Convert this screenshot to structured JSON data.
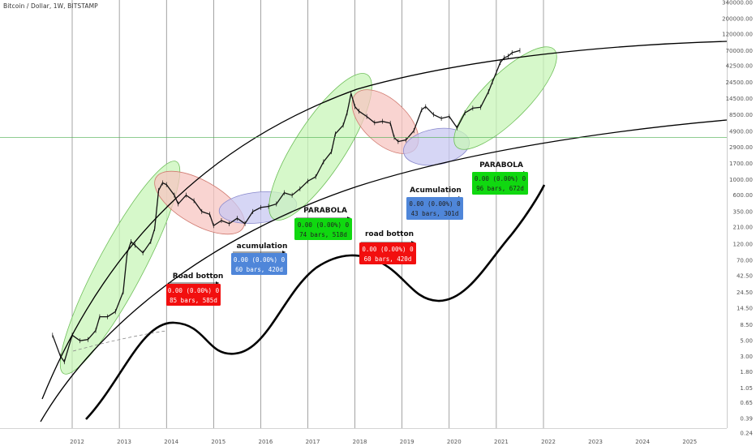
{
  "header": {
    "title": "Bitcoin / Dollar, 1W, BITSTAMP"
  },
  "chart_data": {
    "type": "line",
    "title": "Bitcoin / Dollar, 1W, BITSTAMP",
    "yscale": "log",
    "ylim": [
      0.24,
      340000
    ],
    "y_ticks": [
      "340000.00",
      "200000.00",
      "120000.00",
      "70000.00",
      "42500.00",
      "24500.00",
      "14500.00",
      "8500.00",
      "4900.00",
      "2900.00",
      "1700.00",
      "1000.00",
      "600.00",
      "350.00",
      "210.00",
      "120.00",
      "70.00",
      "42.50",
      "24.50",
      "14.50",
      "8.50",
      "5.00",
      "3.00",
      "1.80",
      "1.05",
      "0.65",
      "0.39",
      "0.24"
    ],
    "x_ticks": [
      "2012",
      "2013",
      "2014",
      "2015",
      "2016",
      "2017",
      "2018",
      "2019",
      "2020",
      "2021",
      "2022",
      "2023",
      "2024",
      "2025"
    ],
    "current_price": "4015.01",
    "series": [
      {
        "values": [
          {
            "x": "2011-08",
            "y": 6
          },
          {
            "x": "2011-10",
            "y": 3
          },
          {
            "x": "2011-11",
            "y": 2.5
          },
          {
            "x": "2012-01",
            "y": 6
          },
          {
            "x": "2012-03",
            "y": 5
          },
          {
            "x": "2012-05",
            "y": 5.2
          },
          {
            "x": "2012-07",
            "y": 7
          },
          {
            "x": "2012-08",
            "y": 11
          },
          {
            "x": "2012-10",
            "y": 11
          },
          {
            "x": "2012-12",
            "y": 13
          },
          {
            "x": "2013-02",
            "y": 25
          },
          {
            "x": "2013-03",
            "y": 90
          },
          {
            "x": "2013-04",
            "y": 130
          },
          {
            "x": "2013-05",
            "y": 115
          },
          {
            "x": "2013-07",
            "y": 90
          },
          {
            "x": "2013-09",
            "y": 130
          },
          {
            "x": "2013-10",
            "y": 200
          },
          {
            "x": "2013-11",
            "y": 700
          },
          {
            "x": "2013-12",
            "y": 900
          },
          {
            "x": "2014-01",
            "y": 850
          },
          {
            "x": "2014-03",
            "y": 600
          },
          {
            "x": "2014-04",
            "y": 450
          },
          {
            "x": "2014-06",
            "y": 600
          },
          {
            "x": "2014-08",
            "y": 500
          },
          {
            "x": "2014-10",
            "y": 350
          },
          {
            "x": "2014-12",
            "y": 320
          },
          {
            "x": "2015-01",
            "y": 220
          },
          {
            "x": "2015-03",
            "y": 260
          },
          {
            "x": "2015-05",
            "y": 235
          },
          {
            "x": "2015-07",
            "y": 280
          },
          {
            "x": "2015-09",
            "y": 235
          },
          {
            "x": "2015-11",
            "y": 350
          },
          {
            "x": "2016-01",
            "y": 400
          },
          {
            "x": "2016-03",
            "y": 415
          },
          {
            "x": "2016-05",
            "y": 450
          },
          {
            "x": "2016-07",
            "y": 650
          },
          {
            "x": "2016-09",
            "y": 600
          },
          {
            "x": "2016-11",
            "y": 740
          },
          {
            "x": "2017-01",
            "y": 950
          },
          {
            "x": "2017-03",
            "y": 1100
          },
          {
            "x": "2017-05",
            "y": 1800
          },
          {
            "x": "2017-07",
            "y": 2500
          },
          {
            "x": "2017-08",
            "y": 4500
          },
          {
            "x": "2017-10",
            "y": 6000
          },
          {
            "x": "2017-11",
            "y": 9000
          },
          {
            "x": "2017-12",
            "y": 17000
          },
          {
            "x": "2018-01",
            "y": 11000
          },
          {
            "x": "2018-02",
            "y": 9500
          },
          {
            "x": "2018-04",
            "y": 8000
          },
          {
            "x": "2018-06",
            "y": 6500
          },
          {
            "x": "2018-08",
            "y": 6800
          },
          {
            "x": "2018-10",
            "y": 6400
          },
          {
            "x": "2018-11",
            "y": 4000
          },
          {
            "x": "2018-12",
            "y": 3500
          },
          {
            "x": "2019-02",
            "y": 3700
          },
          {
            "x": "2019-04",
            "y": 5000
          },
          {
            "x": "2019-06",
            "y": 10000
          },
          {
            "x": "2019-07",
            "y": 11000
          },
          {
            "x": "2019-09",
            "y": 8500
          },
          {
            "x": "2019-11",
            "y": 7500
          },
          {
            "x": "2020-01",
            "y": 8000
          },
          {
            "x": "2020-03",
            "y": 5500
          },
          {
            "x": "2020-05",
            "y": 9000
          },
          {
            "x": "2020-07",
            "y": 10500
          },
          {
            "x": "2020-09",
            "y": 10800
          },
          {
            "x": "2020-11",
            "y": 18000
          },
          {
            "x": "2020-12",
            "y": 25000
          },
          {
            "x": "2021-01",
            "y": 34000
          },
          {
            "x": "2021-02",
            "y": 47000
          },
          {
            "x": "2021-03",
            "y": 55000
          },
          {
            "x": "2021-04",
            "y": 58000
          },
          {
            "x": "2021-05",
            "y": 65000
          },
          {
            "x": "2021-07",
            "y": 70000
          }
        ]
      }
    ],
    "annotations": {
      "road_botton_1": {
        "title": "Road botton",
        "line1": "0.00 (0.00%) 0",
        "line2": "85 bars, 585d"
      },
      "acumulation_1": {
        "title": "acumulation",
        "line1": "0.00 (0.00%) 0",
        "line2": "60 bars, 420d"
      },
      "parabola_1": {
        "title": "PARABOLA",
        "line1": "0.00 (0.00%) 0",
        "line2": "74 bars, 518d"
      },
      "road_botton_2": {
        "title": "road botton",
        "line1": "0.00 (0.00%) 0",
        "line2": "60 bars, 420d"
      },
      "acumulation_2": {
        "title": "Acumulation",
        "line1": "0.00 (0.00%) 0",
        "line2": "43 bars, 301d"
      },
      "parabola_2": {
        "title": "PARABOLA",
        "line1": "0.00 (0.00%) 0",
        "line2": "96 bars, 672d"
      }
    },
    "colors": {
      "parabola_zone": "#c8f5b8",
      "road_botton_zone": "#f7c6c2",
      "acumulation_zone": "#c8c8f2",
      "road_botton_box": "#f20f0f",
      "acumulation_box": "#4f86d9",
      "parabola_box": "#10d810",
      "current_price_line": "#4caf50"
    }
  }
}
